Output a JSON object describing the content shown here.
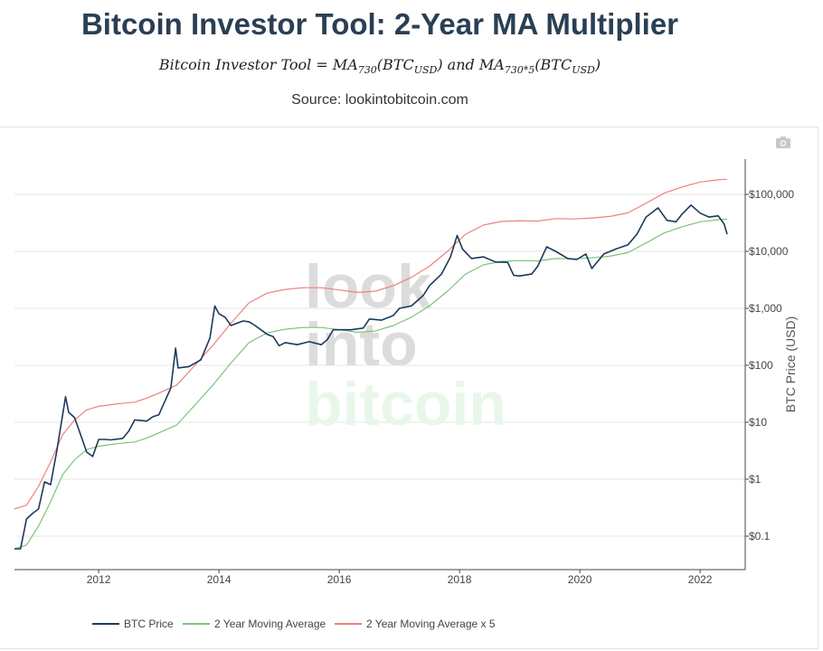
{
  "header": {
    "title": "Bitcoin Investor Tool: 2-Year MA Multiplier",
    "formula_lhs": "Bitcoin Investor Tool = ",
    "formula_ma": "MA",
    "formula_sub1": "730",
    "formula_btc": "(BTC",
    "formula_usd": "USD",
    "formula_and": ") and MA",
    "formula_sub2": "730*5",
    "formula_btc2": "(BTC",
    "formula_usd2": "USD",
    "formula_close": ")",
    "source": "Source: lookintobitcoin.com"
  },
  "watermark": {
    "line1": "look",
    "line2": "into",
    "line3": "bitcoin"
  },
  "toolbar": {
    "camera_icon": "camera-icon"
  },
  "colors": {
    "price": "#1b3a5c",
    "ma": "#7cc47c",
    "ma5": "#f08080",
    "watermark_grey": "#dcdcdc",
    "watermark_green": "#e9f7ea"
  },
  "chart_data": {
    "type": "line",
    "y_scale": "log",
    "ylabel": "BTC Price (USD)",
    "y_ticks": [
      {
        "value": 0.1,
        "label": "$0.1"
      },
      {
        "value": 1,
        "label": "$1"
      },
      {
        "value": 10,
        "label": "$10"
      },
      {
        "value": 100,
        "label": "$100"
      },
      {
        "value": 1000,
        "label": "$1,000"
      },
      {
        "value": 10000,
        "label": "$10,000"
      },
      {
        "value": 100000,
        "label": "$100,000"
      }
    ],
    "x_ticks": [
      {
        "value": 2012,
        "label": "2012"
      },
      {
        "value": 2014,
        "label": "2014"
      },
      {
        "value": 2016,
        "label": "2016"
      },
      {
        "value": 2018,
        "label": "2018"
      },
      {
        "value": 2020,
        "label": "2020"
      },
      {
        "value": 2022,
        "label": "2022"
      }
    ],
    "xlim": [
      2010.6,
      2022.75
    ],
    "grid": true,
    "legend_position": "bottom-left",
    "series": [
      {
        "name": "BTC Price",
        "color": "#1b3a5c",
        "points": [
          [
            2010.6,
            0.06
          ],
          [
            2010.7,
            0.06
          ],
          [
            2010.8,
            0.2
          ],
          [
            2010.9,
            0.25
          ],
          [
            2011.0,
            0.3
          ],
          [
            2011.1,
            0.9
          ],
          [
            2011.2,
            0.8
          ],
          [
            2011.3,
            3
          ],
          [
            2011.45,
            28
          ],
          [
            2011.5,
            15
          ],
          [
            2011.6,
            12
          ],
          [
            2011.7,
            6
          ],
          [
            2011.8,
            3
          ],
          [
            2011.9,
            2.5
          ],
          [
            2012.0,
            5
          ],
          [
            2012.1,
            5
          ],
          [
            2012.2,
            4.9
          ],
          [
            2012.4,
            5.2
          ],
          [
            2012.5,
            7
          ],
          [
            2012.6,
            11
          ],
          [
            2012.8,
            10.5
          ],
          [
            2012.9,
            12.5
          ],
          [
            2013.0,
            13.5
          ],
          [
            2013.2,
            40
          ],
          [
            2013.28,
            200
          ],
          [
            2013.32,
            90
          ],
          [
            2013.5,
            95
          ],
          [
            2013.7,
            125
          ],
          [
            2013.85,
            300
          ],
          [
            2013.93,
            1100
          ],
          [
            2014.0,
            800
          ],
          [
            2014.1,
            700
          ],
          [
            2014.2,
            500
          ],
          [
            2014.4,
            600
          ],
          [
            2014.5,
            580
          ],
          [
            2014.6,
            500
          ],
          [
            2014.8,
            350
          ],
          [
            2014.9,
            320
          ],
          [
            2015.0,
            220
          ],
          [
            2015.1,
            250
          ],
          [
            2015.3,
            230
          ],
          [
            2015.5,
            260
          ],
          [
            2015.7,
            230
          ],
          [
            2015.8,
            280
          ],
          [
            2015.9,
            420
          ],
          [
            2016.0,
            420
          ],
          [
            2016.2,
            420
          ],
          [
            2016.4,
            450
          ],
          [
            2016.5,
            650
          ],
          [
            2016.7,
            620
          ],
          [
            2016.9,
            750
          ],
          [
            2017.0,
            1000
          ],
          [
            2017.2,
            1100
          ],
          [
            2017.4,
            1700
          ],
          [
            2017.5,
            2500
          ],
          [
            2017.7,
            4000
          ],
          [
            2017.85,
            8000
          ],
          [
            2017.96,
            19000
          ],
          [
            2018.05,
            11000
          ],
          [
            2018.2,
            7500
          ],
          [
            2018.4,
            8000
          ],
          [
            2018.6,
            6500
          ],
          [
            2018.8,
            6400
          ],
          [
            2018.9,
            3800
          ],
          [
            2019.0,
            3700
          ],
          [
            2019.2,
            4000
          ],
          [
            2019.3,
            5500
          ],
          [
            2019.45,
            12000
          ],
          [
            2019.6,
            10000
          ],
          [
            2019.8,
            7500
          ],
          [
            2019.95,
            7200
          ],
          [
            2020.1,
            9000
          ],
          [
            2020.2,
            5000
          ],
          [
            2020.4,
            9000
          ],
          [
            2020.6,
            11000
          ],
          [
            2020.8,
            13000
          ],
          [
            2020.95,
            20000
          ],
          [
            2021.1,
            40000
          ],
          [
            2021.3,
            58000
          ],
          [
            2021.45,
            35000
          ],
          [
            2021.6,
            33000
          ],
          [
            2021.7,
            45000
          ],
          [
            2021.85,
            65000
          ],
          [
            2022.0,
            47000
          ],
          [
            2022.15,
            40000
          ],
          [
            2022.3,
            42000
          ],
          [
            2022.4,
            30000
          ],
          [
            2022.45,
            20000
          ]
        ]
      },
      {
        "name": "2 Year Moving Average",
        "color": "#7cc47c",
        "points": [
          [
            2010.6,
            0.06
          ],
          [
            2010.8,
            0.07
          ],
          [
            2011.0,
            0.15
          ],
          [
            2011.2,
            0.4
          ],
          [
            2011.4,
            1.2
          ],
          [
            2011.6,
            2.2
          ],
          [
            2011.8,
            3.3
          ],
          [
            2012.0,
            3.8
          ],
          [
            2012.3,
            4.2
          ],
          [
            2012.6,
            4.5
          ],
          [
            2012.8,
            5.3
          ],
          [
            2013.0,
            6.5
          ],
          [
            2013.3,
            9
          ],
          [
            2013.6,
            20
          ],
          [
            2013.9,
            45
          ],
          [
            2014.2,
            110
          ],
          [
            2014.5,
            250
          ],
          [
            2014.8,
            370
          ],
          [
            2015.1,
            430
          ],
          [
            2015.4,
            460
          ],
          [
            2015.7,
            460
          ],
          [
            2016.0,
            420
          ],
          [
            2016.3,
            380
          ],
          [
            2016.6,
            400
          ],
          [
            2016.9,
            500
          ],
          [
            2017.2,
            700
          ],
          [
            2017.5,
            1100
          ],
          [
            2017.8,
            2000
          ],
          [
            2018.1,
            4000
          ],
          [
            2018.4,
            5800
          ],
          [
            2018.7,
            6700
          ],
          [
            2019.0,
            6900
          ],
          [
            2019.3,
            6800
          ],
          [
            2019.6,
            7500
          ],
          [
            2019.9,
            7400
          ],
          [
            2020.2,
            7700
          ],
          [
            2020.5,
            8200
          ],
          [
            2020.8,
            9500
          ],
          [
            2021.1,
            14000
          ],
          [
            2021.4,
            21000
          ],
          [
            2021.7,
            27000
          ],
          [
            2022.0,
            33000
          ],
          [
            2022.3,
            36000
          ],
          [
            2022.45,
            37000
          ]
        ]
      },
      {
        "name": "2 Year Moving Average x 5",
        "color": "#f08080",
        "points": [
          [
            2010.6,
            0.3
          ],
          [
            2010.8,
            0.35
          ],
          [
            2011.0,
            0.75
          ],
          [
            2011.2,
            2
          ],
          [
            2011.4,
            6
          ],
          [
            2011.6,
            11
          ],
          [
            2011.8,
            16.5
          ],
          [
            2012.0,
            19
          ],
          [
            2012.3,
            21
          ],
          [
            2012.6,
            22.5
          ],
          [
            2012.8,
            26.5
          ],
          [
            2013.0,
            32.5
          ],
          [
            2013.3,
            45
          ],
          [
            2013.6,
            100
          ],
          [
            2013.9,
            225
          ],
          [
            2014.2,
            550
          ],
          [
            2014.5,
            1250
          ],
          [
            2014.8,
            1850
          ],
          [
            2015.1,
            2150
          ],
          [
            2015.4,
            2300
          ],
          [
            2015.7,
            2300
          ],
          [
            2016.0,
            2100
          ],
          [
            2016.3,
            1900
          ],
          [
            2016.6,
            2000
          ],
          [
            2016.9,
            2500
          ],
          [
            2017.2,
            3500
          ],
          [
            2017.5,
            5500
          ],
          [
            2017.8,
            10000
          ],
          [
            2018.1,
            20000
          ],
          [
            2018.4,
            29000
          ],
          [
            2018.7,
            33500
          ],
          [
            2019.0,
            34500
          ],
          [
            2019.3,
            34000
          ],
          [
            2019.6,
            37500
          ],
          [
            2019.9,
            37000
          ],
          [
            2020.2,
            38500
          ],
          [
            2020.5,
            41000
          ],
          [
            2020.8,
            47500
          ],
          [
            2021.1,
            70000
          ],
          [
            2021.4,
            105000
          ],
          [
            2021.7,
            135000
          ],
          [
            2022.0,
            165000
          ],
          [
            2022.3,
            180000
          ],
          [
            2022.45,
            185000
          ]
        ]
      }
    ]
  }
}
